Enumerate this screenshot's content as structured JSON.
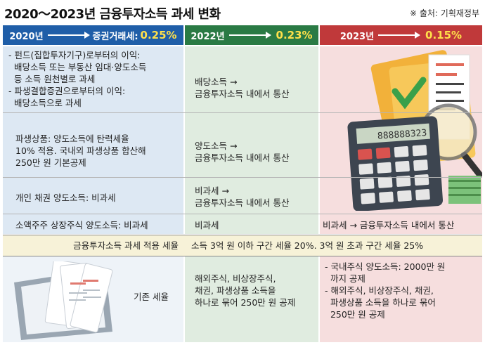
{
  "title": "2020～2023년 금융투자소득 과세 변화",
  "source": "※ 출처: 기획재정부",
  "headers": [
    {
      "year": "2020년",
      "label": "증권거래세:",
      "rate": "0.25%"
    },
    {
      "year": "2022년",
      "label": "",
      "rate": "0.23%"
    },
    {
      "year": "2023년",
      "label": "",
      "rate": "0.15%"
    }
  ],
  "rows": {
    "r1": {
      "c1": [
        "- 펀드(집합투자기구)로부터의 이익:",
        "  배당소득 또는 부동산 임대·양도소득",
        "  등 소득 원천별로 과세",
        "- 파생결합증권으로부터의 이익:",
        "  배당소득으로 과세"
      ],
      "c2": [
        "배당소득 →",
        "금융투자소득 내에서 통산"
      ]
    },
    "r2": {
      "c1": [
        "파생상품: 양도소득에 탄력세율",
        "10% 적용. 국내외 파생상품 합산해",
        "250만 원 기본공제"
      ],
      "c2": [
        "양도소득 →",
        "금융투자소득 내에서 통산"
      ]
    },
    "r3": {
      "c1": [
        "개인 채권 양도소득: 비과세"
      ],
      "c2": [
        "비과세 →",
        "금융투자소득 내에서 통산"
      ]
    },
    "r4": {
      "c1": [
        "소액주주 상장주식 양도소득: 비과세"
      ],
      "c2": [
        "비과세"
      ],
      "c3": [
        "비과세 → 금융투자소득 내에서 통산"
      ]
    },
    "r5": {
      "c1": [
        "금융투자소득 과세 적용 세율"
      ],
      "c23": [
        "소득 3억 원 이하 구간 세율 20%. 3억 원 초과 구간 세율 25%"
      ]
    },
    "r6": {
      "c1": [
        "기존 세율"
      ],
      "c2": [
        "해외주식, 비상장주식,",
        "채권, 파생상품 소득을",
        "하나로 묶어 250만 원 공제"
      ],
      "c3": [
        "- 국내주식 양도소득: 2000만 원",
        "  까지 공제",
        "- 해외주식, 비상장주식, 채권,",
        "  파생상품 소득을 하나로 묶어",
        "  250만 원 공제"
      ]
    }
  },
  "calculator_display": "888888323",
  "colors": {
    "blue": "#1f5ea8",
    "green": "#2a7a44",
    "red": "#c0393a",
    "yellow": "#ffe04a"
  }
}
